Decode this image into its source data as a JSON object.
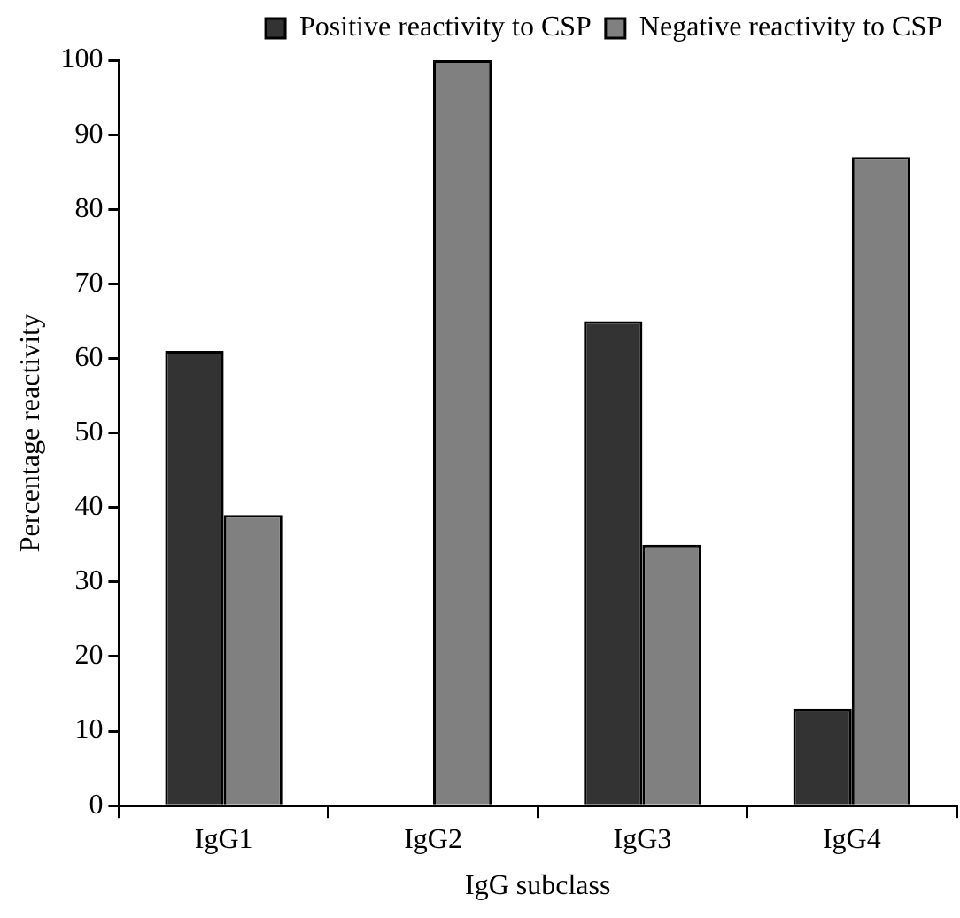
{
  "chart_data": {
    "type": "bar",
    "xlabel": "IgG subclass",
    "ylabel": "Percentage reactivity",
    "categories": [
      "IgG1",
      "IgG2",
      "IgG3",
      "IgG4"
    ],
    "series": [
      {
        "name": "Positive reactivity to CSP",
        "color": "#333333",
        "values": [
          61,
          0,
          65,
          13
        ]
      },
      {
        "name": "Negative reactivity to CSP",
        "color": "#808080",
        "values": [
          39,
          100,
          35,
          87
        ]
      }
    ],
    "ylim": [
      0,
      100
    ],
    "yticks": [
      0,
      10,
      20,
      30,
      40,
      50,
      60,
      70,
      80,
      90,
      100
    ],
    "grid": false,
    "legend": "top right"
  }
}
